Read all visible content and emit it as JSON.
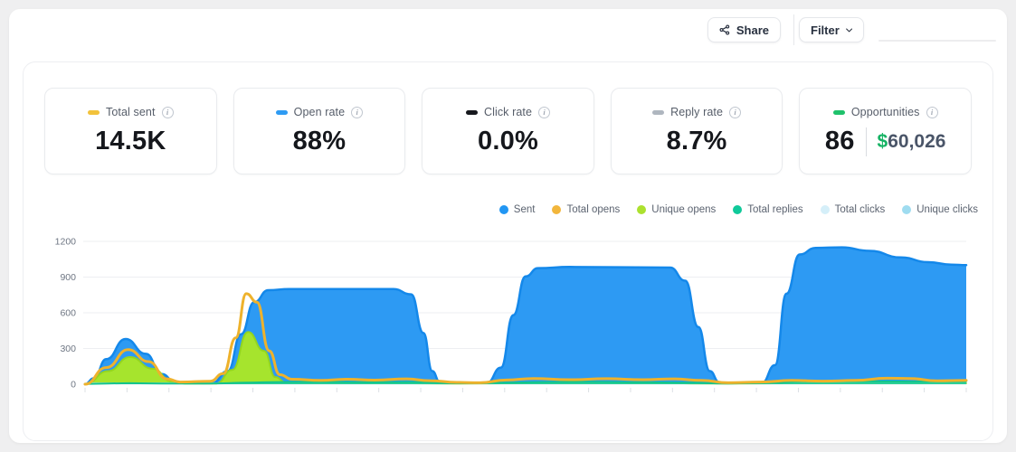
{
  "topbar": {
    "share_label": "Share",
    "filter_label": "Filter"
  },
  "stats": {
    "cards": [
      {
        "label": "Total sent",
        "value": "14.5K",
        "marker_color": "#F2C23B"
      },
      {
        "label": "Open rate",
        "value": "88%",
        "marker_color": "#2E9BF3"
      },
      {
        "label": "Click rate",
        "value": "0.0%",
        "marker_color": "#16181D"
      },
      {
        "label": "Reply rate",
        "value": "8.7%",
        "marker_color": "#AFB6BF"
      },
      {
        "label": "Opportunities",
        "marker_color": "#1FC16B",
        "count": "86",
        "currency": "$",
        "amount": "60,026"
      }
    ]
  },
  "chart_data": {
    "type": "area",
    "title": "",
    "xlabel": "",
    "ylabel": "",
    "ylim": [
      0,
      1200
    ],
    "yticks": [
      0,
      300,
      600,
      900,
      1200
    ],
    "x_tick_count": 22,
    "x_tick_labels_visible": false,
    "grid": true,
    "legend_position": "top-right",
    "legend": [
      {
        "name": "Sent",
        "color": "#2196F3"
      },
      {
        "name": "Total opens",
        "color": "#F2B63C"
      },
      {
        "name": "Unique opens",
        "color": "#ACE12F"
      },
      {
        "name": "Total replies",
        "color": "#10C99A"
      },
      {
        "name": "Total clicks",
        "color": "#D5EFF9"
      },
      {
        "name": "Unique clicks",
        "color": "#9FDCF0"
      }
    ],
    "draw_order": [
      "sent",
      "unique_opens",
      "total_clicks",
      "unique_clicks",
      "total_replies",
      "total_opens"
    ],
    "series": [
      {
        "id": "sent",
        "name": "Sent",
        "style": "area",
        "fill": "#2D9AF3",
        "stroke": "#1488EA",
        "stroke_width": 2.5,
        "points": [
          [
            0,
            0
          ],
          [
            1,
            50
          ],
          [
            2.4,
            210
          ],
          [
            4.6,
            380
          ],
          [
            6.9,
            255
          ],
          [
            8.7,
            85
          ],
          [
            10.3,
            12
          ],
          [
            14.4,
            8
          ],
          [
            16.2,
            110
          ],
          [
            17.7,
            420
          ],
          [
            19.2,
            690
          ],
          [
            20.8,
            790
          ],
          [
            23.2,
            800
          ],
          [
            35,
            800
          ],
          [
            37,
            755
          ],
          [
            38.4,
            430
          ],
          [
            39.4,
            110
          ],
          [
            40.3,
            12
          ],
          [
            45.6,
            10
          ],
          [
            47.2,
            140
          ],
          [
            48.6,
            580
          ],
          [
            50,
            905
          ],
          [
            51.4,
            975
          ],
          [
            55,
            985
          ],
          [
            66.4,
            980
          ],
          [
            68.1,
            870
          ],
          [
            69.6,
            480
          ],
          [
            70.9,
            110
          ],
          [
            72,
            12
          ],
          [
            76.8,
            10
          ],
          [
            78.3,
            160
          ],
          [
            79.6,
            760
          ],
          [
            81.1,
            1090
          ],
          [
            82.9,
            1145
          ],
          [
            85.9,
            1150
          ],
          [
            89,
            1120
          ],
          [
            92.6,
            1065
          ],
          [
            95.7,
            1025
          ],
          [
            98.3,
            1005
          ],
          [
            100,
            1000
          ]
        ]
      },
      {
        "id": "total_opens",
        "name": "Total opens",
        "style": "line",
        "stroke": "#EEB22C",
        "stroke_width": 3,
        "points": [
          [
            0,
            0
          ],
          [
            2.4,
            140
          ],
          [
            4.9,
            290
          ],
          [
            7.2,
            190
          ],
          [
            9.3,
            45
          ],
          [
            10.8,
            18
          ],
          [
            14.2,
            25
          ],
          [
            15.7,
            90
          ],
          [
            17.1,
            390
          ],
          [
            18.3,
            760
          ],
          [
            19.5,
            690
          ],
          [
            20.9,
            280
          ],
          [
            22.1,
            80
          ],
          [
            23.5,
            42
          ],
          [
            26.7,
            32
          ],
          [
            29.8,
            42
          ],
          [
            32.9,
            34
          ],
          [
            36.5,
            45
          ],
          [
            39.1,
            30
          ],
          [
            42.2,
            15
          ],
          [
            44.8,
            12
          ],
          [
            47.8,
            35
          ],
          [
            50.9,
            48
          ],
          [
            55,
            38
          ],
          [
            59.2,
            46
          ],
          [
            63.3,
            38
          ],
          [
            66.9,
            45
          ],
          [
            70,
            32
          ],
          [
            73,
            12
          ],
          [
            76.6,
            18
          ],
          [
            80.2,
            32
          ],
          [
            83.8,
            26
          ],
          [
            87.4,
            32
          ],
          [
            91,
            50
          ],
          [
            93.6,
            48
          ],
          [
            96.7,
            28
          ],
          [
            100,
            32
          ]
        ]
      },
      {
        "id": "unique_opens",
        "name": "Unique opens",
        "style": "area",
        "fill": "#A6E42D",
        "stroke": "#93D51F",
        "stroke_width": 2,
        "points": [
          [
            0,
            0
          ],
          [
            2.6,
            110
          ],
          [
            5.1,
            228
          ],
          [
            7.7,
            130
          ],
          [
            9.8,
            25
          ],
          [
            11.3,
            6
          ],
          [
            14.9,
            6
          ],
          [
            16.7,
            120
          ],
          [
            18.5,
            438
          ],
          [
            20.3,
            280
          ],
          [
            21.6,
            60
          ],
          [
            22.8,
            14
          ],
          [
            25.7,
            8
          ],
          [
            31.9,
            10
          ],
          [
            42.2,
            6
          ],
          [
            52.5,
            8
          ],
          [
            62.8,
            8
          ],
          [
            73,
            6
          ],
          [
            83.3,
            8
          ],
          [
            93.6,
            8
          ],
          [
            100,
            8
          ]
        ]
      },
      {
        "id": "total_replies",
        "name": "Total replies",
        "style": "area",
        "fill": "#2BCF96",
        "stroke": "#12C48B",
        "stroke_width": 2,
        "points": [
          [
            0,
            2
          ],
          [
            5,
            8
          ],
          [
            10,
            5
          ],
          [
            15,
            7
          ],
          [
            18.5,
            14
          ],
          [
            22,
            18
          ],
          [
            26.7,
            20
          ],
          [
            31.9,
            16
          ],
          [
            37,
            18
          ],
          [
            42.2,
            8
          ],
          [
            47.3,
            12
          ],
          [
            52.5,
            18
          ],
          [
            57.6,
            20
          ],
          [
            62.8,
            16
          ],
          [
            67.9,
            14
          ],
          [
            73,
            6
          ],
          [
            78.2,
            12
          ],
          [
            81.3,
            24
          ],
          [
            85.4,
            28
          ],
          [
            89.5,
            25
          ],
          [
            93.6,
            22
          ],
          [
            100,
            25
          ]
        ]
      },
      {
        "id": "total_clicks",
        "name": "Total clicks",
        "style": "area",
        "fill": "#DCF2F9",
        "stroke": "#CBEBF6",
        "stroke_width": 1,
        "points": [
          [
            0,
            11
          ],
          [
            50,
            12
          ],
          [
            100,
            11
          ]
        ]
      },
      {
        "id": "unique_clicks",
        "name": "Unique clicks",
        "style": "area",
        "fill": "#BCE5F3",
        "stroke": "",
        "stroke_width": 0,
        "points": [
          [
            0,
            6
          ],
          [
            50,
            7
          ],
          [
            100,
            6
          ]
        ]
      }
    ]
  }
}
